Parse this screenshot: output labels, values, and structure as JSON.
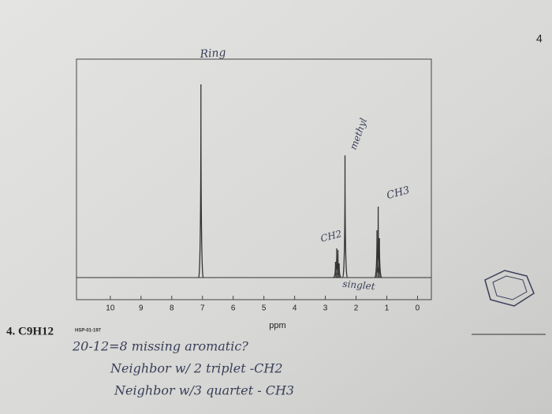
{
  "page_number": "4",
  "chart_data": {
    "type": "spectrum",
    "x": [
      7.05,
      2.67,
      2.63,
      2.59,
      2.55,
      2.36,
      1.32,
      1.28,
      1.24
    ],
    "values": [
      245,
      20,
      37,
      35,
      18,
      155,
      60,
      90,
      50
    ],
    "xlim": [
      11.1,
      -0.45
    ],
    "xticks": [
      10,
      9,
      8,
      7,
      6,
      5,
      4,
      3,
      2,
      1,
      0
    ],
    "xlabel": "ppm",
    "color": "#333333",
    "annotations": [
      "Ring",
      "methyl",
      "CH3",
      "CH2",
      "singlet"
    ]
  },
  "problem": {
    "label": "4. C9H12",
    "code": "HSP-01-197",
    "notes": [
      "20-12=8 missing aromatic?",
      "Neighbor w/ 2 triplet -CH2",
      "Neighbor w/3 quartet - CH3"
    ]
  }
}
